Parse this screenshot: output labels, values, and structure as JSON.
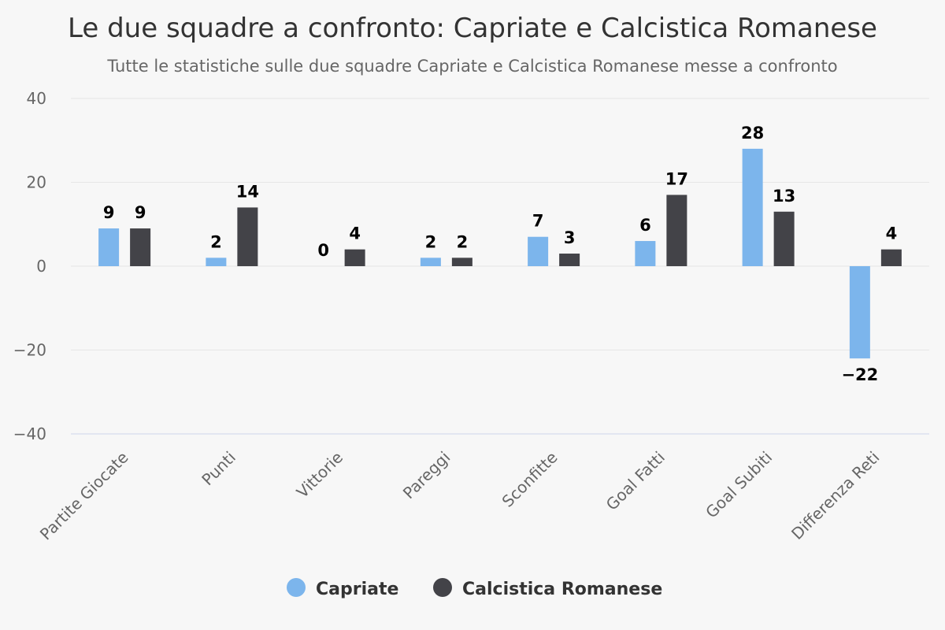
{
  "chart_data": {
    "type": "bar",
    "title": "Le due squadre a confronto: Capriate e Calcistica Romanese",
    "subtitle": "Tutte le statistiche sulle due squadre Capriate e Calcistica Romanese messe a confronto",
    "categories": [
      "Partite Giocate",
      "Punti",
      "Vittorie",
      "Pareggi",
      "Sconfitte",
      "Goal Fatti",
      "Goal Subiti",
      "Differenza Reti"
    ],
    "series": [
      {
        "name": "Capriate",
        "color": "#7cb5ec",
        "values": [
          9,
          2,
          0,
          2,
          7,
          6,
          28,
          -22
        ]
      },
      {
        "name": "Calcistica Romanese",
        "color": "#434348",
        "values": [
          9,
          14,
          4,
          2,
          3,
          17,
          13,
          4
        ]
      }
    ],
    "ylim": [
      -40,
      40
    ],
    "yticks": [
      40,
      20,
      0,
      -20,
      -40
    ],
    "ytick_labels": [
      "40",
      "20",
      "0",
      "−20",
      "−40"
    ],
    "xlabel": "",
    "ylabel": "",
    "grid": true,
    "legend_placement": "bottom-center"
  }
}
